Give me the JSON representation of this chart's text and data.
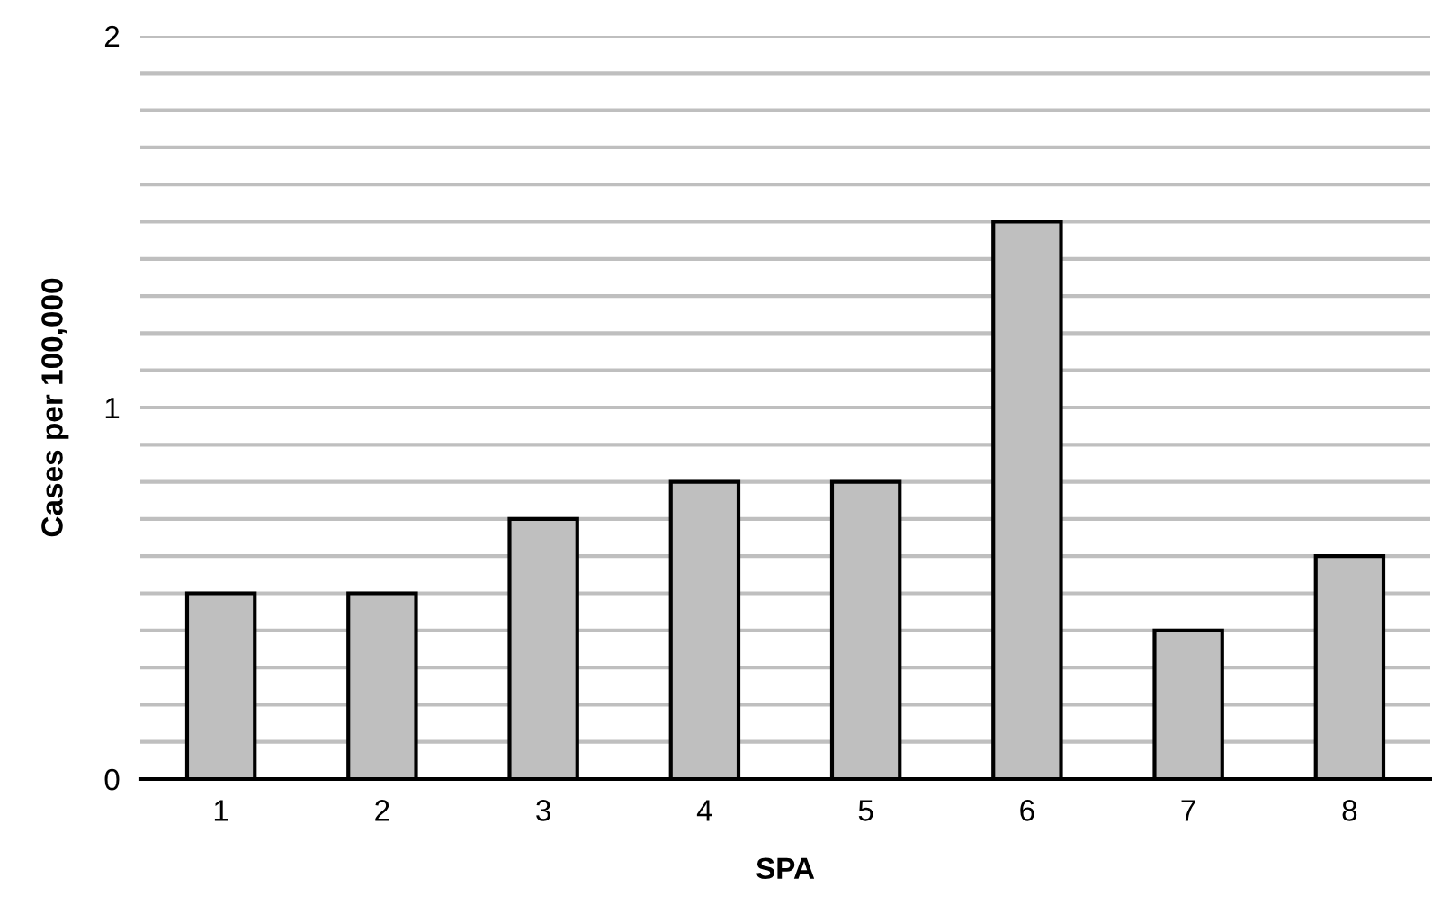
{
  "chart_data": {
    "type": "bar",
    "xlabel": "SPA",
    "ylabel": "Cases per 100,000",
    "categories": [
      "1",
      "2",
      "3",
      "4",
      "5",
      "6",
      "7",
      "8"
    ],
    "values": [
      0.5,
      0.5,
      0.7,
      0.8,
      0.8,
      1.5,
      0.4,
      0.6
    ],
    "color": "#bfbfbf",
    "ylim": [
      0,
      2
    ],
    "yticks": [
      0,
      {
        "value": 0.1,
        "label": null
      },
      {
        "value": 0.2,
        "label": null
      },
      {
        "value": 0.3,
        "label": null
      },
      {
        "value": 0.4,
        "label": null
      },
      {
        "value": 0.5,
        "label": null
      },
      {
        "value": 0.6,
        "label": null
      },
      {
        "value": 0.7,
        "label": null
      },
      {
        "value": 0.8,
        "label": null
      },
      {
        "value": 0.9,
        "label": null
      },
      1,
      {
        "value": 1.1,
        "label": null
      },
      {
        "value": 1.2,
        "label": null
      },
      {
        "value": 1.3,
        "label": null
      },
      {
        "value": 1.4,
        "label": null
      },
      {
        "value": 1.5,
        "label": null
      },
      {
        "value": 1.6,
        "label": null
      },
      {
        "value": 1.7,
        "label": null
      },
      {
        "value": 1.8,
        "label": null
      },
      {
        "value": 1.9,
        "label": null
      },
      2
    ],
    "grid": "y",
    "legend": false
  }
}
